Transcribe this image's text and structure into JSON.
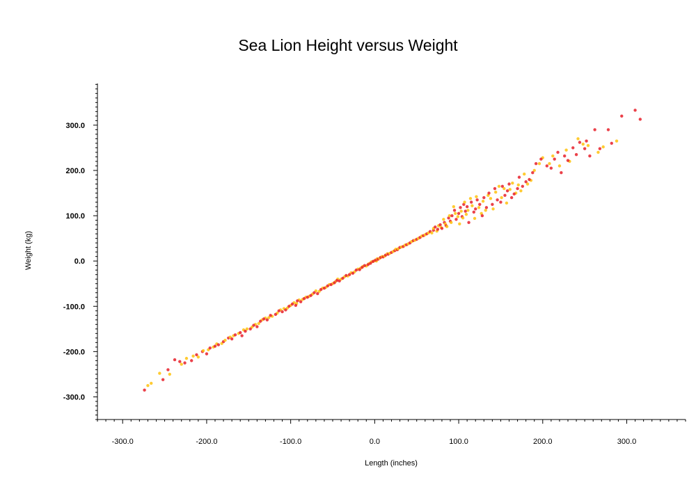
{
  "chart_data": {
    "type": "scatter",
    "title": "Sea Lion Height versus Weight",
    "xlabel": "Length (inches)",
    "ylabel": "Weight (kg)",
    "xlim": [
      -330,
      370
    ],
    "ylim": [
      -350,
      392
    ],
    "x_ticks": [
      "-300.0",
      "-200.0",
      "-100.0",
      "0.0",
      "100.0",
      "200.0",
      "300.0"
    ],
    "y_ticks": [
      "-300.0",
      "-200.0",
      "-100.0",
      "0.0",
      "100.0",
      "200.0",
      "300.0"
    ],
    "grid": false,
    "legend": "none",
    "series": [
      {
        "color": "#e8202a",
        "points": [
          [
            -274,
            -285
          ],
          [
            -252,
            -262
          ],
          [
            -246,
            -240
          ],
          [
            -238,
            -218
          ],
          [
            -232,
            -222
          ],
          [
            -226,
            -225
          ],
          [
            -218,
            -220
          ],
          [
            -212,
            -207
          ],
          [
            -205,
            -200
          ],
          [
            -200,
            -205
          ],
          [
            -196,
            -192
          ],
          [
            -190,
            -188
          ],
          [
            -186,
            -185
          ],
          [
            -180,
            -178
          ],
          [
            -174,
            -170
          ],
          [
            -170,
            -172
          ],
          [
            -166,
            -163
          ],
          [
            -160,
            -158
          ],
          [
            -158,
            -165
          ],
          [
            -154,
            -155
          ],
          [
            -148,
            -150
          ],
          [
            -144,
            -142
          ],
          [
            -140,
            -145
          ],
          [
            -136,
            -133
          ],
          [
            -132,
            -128
          ],
          [
            -128,
            -130
          ],
          [
            -124,
            -120
          ],
          [
            -118,
            -118
          ],
          [
            -114,
            -110
          ],
          [
            -110,
            -112
          ],
          [
            -106,
            -108
          ],
          [
            -102,
            -100
          ],
          [
            -98,
            -95
          ],
          [
            -94,
            -98
          ],
          [
            -92,
            -88
          ],
          [
            -88,
            -90
          ],
          [
            -84,
            -83
          ],
          [
            -80,
            -80
          ],
          [
            -76,
            -76
          ],
          [
            -72,
            -70
          ],
          [
            -68,
            -72
          ],
          [
            -64,
            -63
          ],
          [
            -60,
            -60
          ],
          [
            -56,
            -55
          ],
          [
            -52,
            -52
          ],
          [
            -48,
            -48
          ],
          [
            -45,
            -43
          ],
          [
            -42,
            -44
          ],
          [
            -38,
            -38
          ],
          [
            -34,
            -32
          ],
          [
            -30,
            -30
          ],
          [
            -26,
            -27
          ],
          [
            -22,
            -20
          ],
          [
            -18,
            -19
          ],
          [
            -15,
            -14
          ],
          [
            -12,
            -10
          ],
          [
            -8,
            -8
          ],
          [
            -5,
            -5
          ],
          [
            -2,
            -1
          ],
          [
            1,
            2
          ],
          [
            4,
            4
          ],
          [
            7,
            8
          ],
          [
            10,
            9
          ],
          [
            13,
            13
          ],
          [
            16,
            15
          ],
          [
            20,
            19
          ],
          [
            24,
            23
          ],
          [
            27,
            25
          ],
          [
            30,
            30
          ],
          [
            34,
            32
          ],
          [
            38,
            36
          ],
          [
            42,
            40
          ],
          [
            46,
            45
          ],
          [
            50,
            48
          ],
          [
            54,
            52
          ],
          [
            58,
            56
          ],
          [
            62,
            60
          ],
          [
            66,
            65
          ],
          [
            70,
            68
          ],
          [
            72,
            75
          ],
          [
            75,
            70
          ],
          [
            78,
            80
          ],
          [
            80,
            72
          ],
          [
            83,
            85
          ],
          [
            85,
            78
          ],
          [
            88,
            95
          ],
          [
            90,
            88
          ],
          [
            92,
            100
          ],
          [
            95,
            112
          ],
          [
            97,
            92
          ],
          [
            100,
            105
          ],
          [
            102,
            118
          ],
          [
            104,
            98
          ],
          [
            106,
            125
          ],
          [
            108,
            110
          ],
          [
            110,
            120
          ],
          [
            112,
            85
          ],
          [
            115,
            130
          ],
          [
            118,
            108
          ],
          [
            120,
            115
          ],
          [
            122,
            135
          ],
          [
            125,
            125
          ],
          [
            128,
            100
          ],
          [
            130,
            140
          ],
          [
            133,
            118
          ],
          [
            136,
            150
          ],
          [
            140,
            125
          ],
          [
            143,
            160
          ],
          [
            146,
            135
          ],
          [
            150,
            130
          ],
          [
            152,
            165
          ],
          [
            155,
            145
          ],
          [
            158,
            155
          ],
          [
            160,
            170
          ],
          [
            163,
            140
          ],
          [
            166,
            148
          ],
          [
            170,
            160
          ],
          [
            172,
            185
          ],
          [
            176,
            165
          ],
          [
            180,
            175
          ],
          [
            184,
            180
          ],
          [
            188,
            195
          ],
          [
            192,
            215
          ],
          [
            198,
            225
          ],
          [
            205,
            210
          ],
          [
            210,
            205
          ],
          [
            214,
            225
          ],
          [
            218,
            240
          ],
          [
            222,
            195
          ],
          [
            226,
            232
          ],
          [
            230,
            222
          ],
          [
            236,
            250
          ],
          [
            240,
            235
          ],
          [
            244,
            262
          ],
          [
            250,
            248
          ],
          [
            252,
            265
          ],
          [
            256,
            232
          ],
          [
            262,
            290
          ],
          [
            268,
            248
          ],
          [
            278,
            290
          ],
          [
            282,
            260
          ],
          [
            294,
            320
          ],
          [
            310,
            333
          ],
          [
            316,
            313
          ]
        ]
      },
      {
        "color": "#ffc20e",
        "points": [
          [
            -270,
            -275
          ],
          [
            -266,
            -270
          ],
          [
            -256,
            -248
          ],
          [
            -244,
            -250
          ],
          [
            -230,
            -228
          ],
          [
            -224,
            -215
          ],
          [
            -216,
            -210
          ],
          [
            -210,
            -212
          ],
          [
            -204,
            -198
          ],
          [
            -198,
            -196
          ],
          [
            -192,
            -190
          ],
          [
            -188,
            -183
          ],
          [
            -182,
            -182
          ],
          [
            -178,
            -175
          ],
          [
            -172,
            -168
          ],
          [
            -168,
            -165
          ],
          [
            -162,
            -160
          ],
          [
            -156,
            -152
          ],
          [
            -152,
            -150
          ],
          [
            -146,
            -146
          ],
          [
            -142,
            -140
          ],
          [
            -138,
            -138
          ],
          [
            -134,
            -130
          ],
          [
            -130,
            -126
          ],
          [
            -126,
            -125
          ],
          [
            -122,
            -122
          ],
          [
            -116,
            -115
          ],
          [
            -112,
            -108
          ],
          [
            -108,
            -105
          ],
          [
            -104,
            -104
          ],
          [
            -100,
            -98
          ],
          [
            -96,
            -92
          ],
          [
            -93,
            -94
          ],
          [
            -90,
            -86
          ],
          [
            -86,
            -85
          ],
          [
            -82,
            -80
          ],
          [
            -78,
            -78
          ],
          [
            -74,
            -73
          ],
          [
            -70,
            -66
          ],
          [
            -66,
            -67
          ],
          [
            -62,
            -60
          ],
          [
            -58,
            -58
          ],
          [
            -54,
            -52
          ],
          [
            -50,
            -50
          ],
          [
            -47,
            -46
          ],
          [
            -44,
            -40
          ],
          [
            -40,
            -40
          ],
          [
            -36,
            -35
          ],
          [
            -32,
            -33
          ],
          [
            -28,
            -26
          ],
          [
            -24,
            -24
          ],
          [
            -20,
            -18
          ],
          [
            -17,
            -16
          ],
          [
            -14,
            -12
          ],
          [
            -10,
            -11
          ],
          [
            -7,
            -6
          ],
          [
            -4,
            -2
          ],
          [
            -1,
            0
          ],
          [
            2,
            0
          ],
          [
            3,
            5
          ],
          [
            6,
            6
          ],
          [
            9,
            10
          ],
          [
            12,
            11
          ],
          [
            15,
            16
          ],
          [
            18,
            17
          ],
          [
            22,
            21
          ],
          [
            25,
            26
          ],
          [
            28,
            27
          ],
          [
            32,
            31
          ],
          [
            36,
            35
          ],
          [
            40,
            38
          ],
          [
            44,
            43
          ],
          [
            48,
            46
          ],
          [
            52,
            50
          ],
          [
            56,
            55
          ],
          [
            60,
            58
          ],
          [
            64,
            62
          ],
          [
            68,
            62
          ],
          [
            70,
            72
          ],
          [
            74,
            66
          ],
          [
            76,
            78
          ],
          [
            79,
            74
          ],
          [
            82,
            92
          ],
          [
            84,
            82
          ],
          [
            86,
            76
          ],
          [
            89,
            100
          ],
          [
            91,
            85
          ],
          [
            94,
            120
          ],
          [
            96,
            105
          ],
          [
            99,
            98
          ],
          [
            101,
            82
          ],
          [
            103,
            110
          ],
          [
            105,
            95
          ],
          [
            107,
            130
          ],
          [
            109,
            103
          ],
          [
            111,
            112
          ],
          [
            114,
            138
          ],
          [
            116,
            122
          ],
          [
            119,
            94
          ],
          [
            121,
            142
          ],
          [
            124,
            118
          ],
          [
            127,
            105
          ],
          [
            129,
            132
          ],
          [
            132,
            112
          ],
          [
            135,
            145
          ],
          [
            138,
            138
          ],
          [
            141,
            115
          ],
          [
            144,
            152
          ],
          [
            148,
            165
          ],
          [
            151,
            140
          ],
          [
            154,
            160
          ],
          [
            157,
            128
          ],
          [
            161,
            158
          ],
          [
            164,
            172
          ],
          [
            168,
            150
          ],
          [
            171,
            168
          ],
          [
            174,
            155
          ],
          [
            178,
            192
          ],
          [
            182,
            170
          ],
          [
            186,
            178
          ],
          [
            190,
            200
          ],
          [
            196,
            215
          ],
          [
            200,
            228
          ],
          [
            208,
            215
          ],
          [
            212,
            232
          ],
          [
            220,
            210
          ],
          [
            228,
            245
          ],
          [
            232,
            220
          ],
          [
            242,
            270
          ],
          [
            248,
            258
          ],
          [
            254,
            255
          ],
          [
            266,
            240
          ],
          [
            272,
            252
          ],
          [
            288,
            265
          ]
        ]
      }
    ]
  }
}
